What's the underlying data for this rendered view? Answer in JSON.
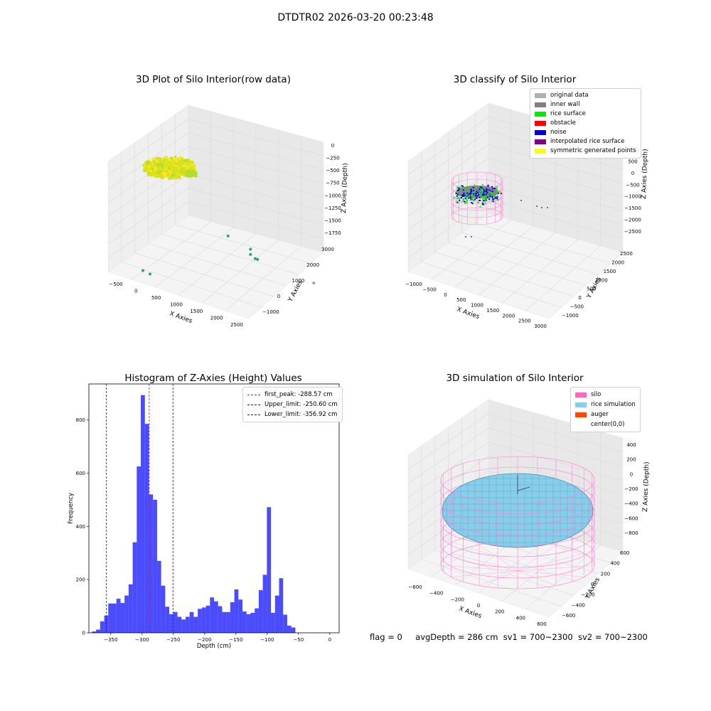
{
  "suptitle": "DTDTR02 2026-03-20 00:23:48",
  "footer": {
    "flag": "flag = 0",
    "avg_depth": "avgDepth = 286 cm",
    "sv1": "sv1 = 700~2300",
    "sv2": "sv2 = 700~2300"
  },
  "chart_data": [
    {
      "type": "scatter",
      "projection": "3d",
      "title": "3D Plot of Silo Interior(row data)",
      "xlabel": "X Axies",
      "ylabel": "Y Axies",
      "zlabel": "Z Axies (Depth)",
      "x_ticks": [
        "−500",
        "0",
        "500",
        "1000",
        "1500",
        "2000",
        "2500"
      ],
      "y_ticks": [
        "−1000",
        "0",
        "1000",
        "2000",
        "3000"
      ],
      "z_ticks": [
        "0",
        "−250",
        "−500",
        "−750",
        "−1000",
        "−1250",
        "−1500",
        "−1750"
      ],
      "cluster_depth_range": [
        -380,
        0
      ],
      "outliers": [
        {
          "x": 1500,
          "y": 300,
          "z": -770
        },
        {
          "x": 1850,
          "y": 600,
          "z": -1000
        },
        {
          "x": 1850,
          "y": 600,
          "z": -1100
        },
        {
          "x": 1950,
          "y": 600,
          "z": -1150
        },
        {
          "x": 2000,
          "y": 600,
          "z": -1150
        },
        {
          "x": 200,
          "y": -900,
          "z": -1500
        },
        {
          "x": 350,
          "y": -900,
          "z": -1520
        },
        {
          "x": 2600,
          "y": 2000,
          "z": -1800
        }
      ],
      "colormap": "viridis",
      "grid": true
    },
    {
      "type": "scatter",
      "projection": "3d",
      "title": "3D classify of Silo Interior",
      "xlabel": "X Axies",
      "ylabel": "Y Axies",
      "zlabel": "Z Axies (Depth)",
      "x_ticks": [
        "−1000",
        "−500",
        "0",
        "500",
        "1000",
        "1500",
        "2000",
        "2500",
        "3000"
      ],
      "y_ticks": [
        "−1000",
        "−500",
        "0",
        "500",
        "1000",
        "1500",
        "2000",
        "2500"
      ],
      "z_ticks": [
        "1000",
        "500",
        "0",
        "−500",
        "−1000",
        "−1500",
        "−2000",
        "−2500"
      ],
      "legend": [
        {
          "label": "original data",
          "color": "#b0b0b0"
        },
        {
          "label": "inner wall",
          "color": "#808080"
        },
        {
          "label": "rice surface",
          "color": "#00ee00"
        },
        {
          "label": "obstacle",
          "color": "#ff0000"
        },
        {
          "label": "noise",
          "color": "#0000ee"
        },
        {
          "label": "interpolated rice surface",
          "color": "#800080"
        },
        {
          "label": "symmetric generated points",
          "color": "#ffff00"
        }
      ],
      "legend_position": "top-right",
      "grid": true
    },
    {
      "type": "bar",
      "title": "Histogram of Z-Axies (Height) Values",
      "xlabel": "Depth (cm)",
      "ylabel": "Frequency",
      "xlim": [
        -385,
        15
      ],
      "ylim": [
        0,
        935
      ],
      "x_ticks": [
        -350,
        -300,
        -250,
        -200,
        -150,
        -100,
        -50,
        0
      ],
      "x_tick_labels": [
        "−350",
        "−300",
        "−250",
        "−200",
        "−150",
        "−100",
        "−50",
        "0"
      ],
      "y_ticks": [
        0,
        200,
        400,
        600,
        800
      ],
      "bin_start": -380,
      "bin_width": 6.5,
      "values": [
        5,
        12,
        43,
        65,
        110,
        110,
        128,
        112,
        140,
        182,
        340,
        625,
        893,
        785,
        520,
        500,
        270,
        177,
        98,
        70,
        78,
        60,
        50,
        60,
        78,
        60,
        90,
        95,
        102,
        133,
        118,
        100,
        78,
        78,
        115,
        163,
        125,
        80,
        70,
        75,
        92,
        160,
        218,
        472,
        75,
        140,
        205,
        68,
        27,
        20
      ],
      "bar_color": "#0000ff",
      "bar_alpha": 0.7,
      "vlines": [
        {
          "label": "first_peak: -288.57 cm",
          "x": -288.57,
          "color": "#ff0000"
        },
        {
          "label": "Upper_limit: -250.60 cm",
          "x": -250.6,
          "color": "#0000ff"
        },
        {
          "label": "Lower_limit: -356.92 cm",
          "x": -356.92,
          "color": "#0000ff"
        }
      ],
      "legend_position": "top-right"
    },
    {
      "type": "surface",
      "projection": "3d",
      "title": "3D simulation of Silo Interior",
      "xlabel": "X Axies",
      "ylabel": "Y Axies",
      "zlabel": "Z Axies (Depth)",
      "x_ticks": [
        "−600",
        "−400",
        "−200",
        "0",
        "200",
        "400",
        "600"
      ],
      "y_ticks": [
        "−600",
        "−400",
        "−200",
        "0",
        "200",
        "400",
        "600"
      ],
      "z_ticks": [
        "400",
        "200",
        "0",
        "−200",
        "−400",
        "−600",
        "−800"
      ],
      "legend": [
        {
          "label": "silo",
          "color": "#ff69b4"
        },
        {
          "label": "rice simulation",
          "color": "#87ceeb"
        },
        {
          "label": "auger",
          "color": "#ff4500"
        },
        {
          "label": "center(0,0)",
          "color": ""
        }
      ],
      "legend_position": "top-right",
      "grid": true
    }
  ]
}
